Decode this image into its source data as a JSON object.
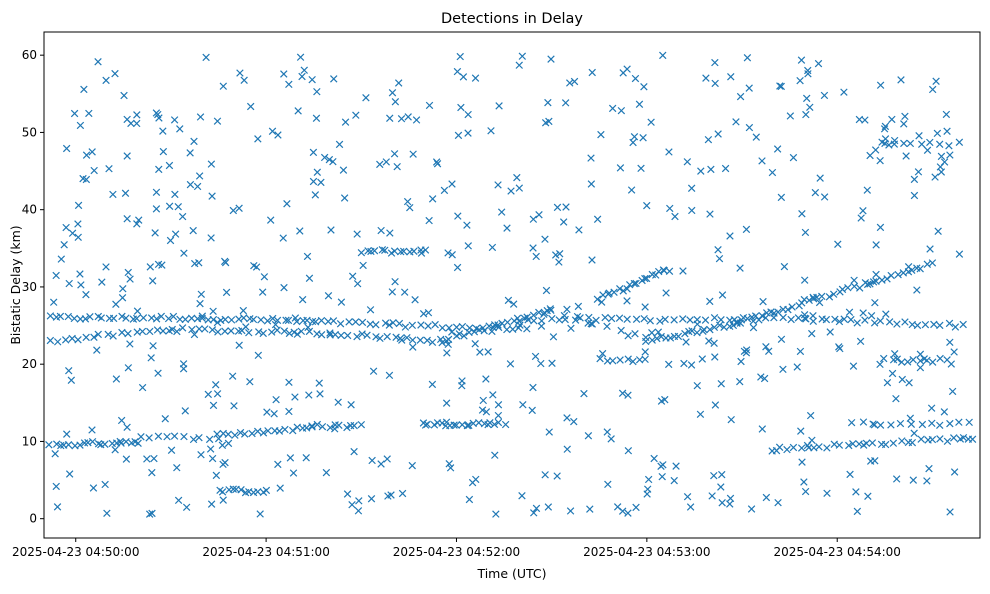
{
  "chart_data": {
    "type": "scatter",
    "title": "Detections in Delay",
    "xlabel": "Time (UTC)",
    "ylabel": "Bistatic Delay (km)",
    "marker": "x",
    "color": "#1f77b4",
    "grid": false,
    "legend": "none",
    "xlim": [
      "2025-04-23 04:49:50",
      "2025-04-23 04:54:45"
    ],
    "ylim": [
      -2.5,
      63
    ],
    "x_ticks": [
      "2025-04-23 04:50:00",
      "2025-04-23 04:51:00",
      "2025-04-23 04:52:00",
      "2025-04-23 04:53:00",
      "2025-04-23 04:54:00"
    ],
    "y_ticks": [
      0,
      10,
      20,
      30,
      40,
      50,
      60
    ],
    "x_range_seconds": [
      0,
      295
    ],
    "tracks": [
      {
        "x": [
          "2025-04-23 04:49:50",
          "2025-04-23 04:50:40"
        ],
        "y": [
          26.0,
          26.0
        ],
        "count": 28
      },
      {
        "x": [
          "2025-04-23 04:50:40",
          "2025-04-23 04:51:15"
        ],
        "y": [
          26.0,
          25.5
        ],
        "count": 20
      },
      {
        "x": [
          "2025-04-23 04:51:15",
          "2025-04-23 04:52:20"
        ],
        "y": [
          25.5,
          24.5
        ],
        "count": 30
      },
      {
        "x": [
          "2025-04-23 04:52:20",
          "2025-04-23 04:53:50"
        ],
        "y": [
          25.8,
          25.8
        ],
        "count": 38
      },
      {
        "x": [
          "2025-04-23 04:53:50",
          "2025-04-23 04:54:40"
        ],
        "y": [
          25.8,
          25.0
        ],
        "count": 22
      },
      {
        "x": [
          "2025-04-23 04:49:52",
          "2025-04-23 04:50:30"
        ],
        "y": [
          23.0,
          24.5
        ],
        "count": 18
      },
      {
        "x": [
          "2025-04-23 04:50:30",
          "2025-04-23 04:51:20"
        ],
        "y": [
          24.5,
          24.0
        ],
        "count": 25
      },
      {
        "x": [
          "2025-04-23 04:51:20",
          "2025-04-23 04:51:55"
        ],
        "y": [
          24.0,
          23.0
        ],
        "count": 18
      },
      {
        "x": [
          "2025-04-23 04:51:55",
          "2025-04-23 04:52:30"
        ],
        "y": [
          23.0,
          27.0
        ],
        "count": 24
      },
      {
        "x": [
          "2025-04-23 04:52:30",
          "2025-04-23 04:53:00"
        ],
        "y": [
          27.0,
          23.5
        ],
        "count": 8
      },
      {
        "x": [
          "2025-04-23 04:53:00",
          "2025-04-23 04:53:30"
        ],
        "y": [
          23.0,
          25.5
        ],
        "count": 22
      },
      {
        "x": [
          "2025-04-23 04:53:30",
          "2025-04-23 04:54:10"
        ],
        "y": [
          25.5,
          30.5
        ],
        "count": 26
      },
      {
        "x": [
          "2025-04-23 04:54:10",
          "2025-04-23 04:54:30"
        ],
        "y": [
          30.5,
          33.0
        ],
        "count": 12
      },
      {
        "x": [
          "2025-04-23 04:52:45",
          "2025-04-23 04:53:05"
        ],
        "y": [
          28.5,
          32.0
        ],
        "count": 18
      },
      {
        "x": [
          "2025-04-23 04:51:30",
          "2025-04-23 04:51:50"
        ],
        "y": [
          34.6,
          34.6
        ],
        "count": 14
      },
      {
        "x": [
          "2025-04-23 04:49:52",
          "2025-04-23 04:50:20"
        ],
        "y": [
          9.5,
          10.0
        ],
        "count": 20
      },
      {
        "x": [
          "2025-04-23 04:50:20",
          "2025-04-23 04:50:45"
        ],
        "y": [
          10.5,
          10.5
        ],
        "count": 10
      },
      {
        "x": [
          "2025-04-23 04:50:45",
          "2025-04-23 04:51:15"
        ],
        "y": [
          10.8,
          11.8
        ],
        "count": 18
      },
      {
        "x": [
          "2025-04-23 04:51:15",
          "2025-04-23 04:51:30"
        ],
        "y": [
          12.0,
          12.0
        ],
        "count": 10
      },
      {
        "x": [
          "2025-04-23 04:51:50",
          "2025-04-23 04:52:15"
        ],
        "y": [
          12.3,
          12.3
        ],
        "count": 20
      },
      {
        "x": [
          "2025-04-23 04:53:40",
          "2025-04-23 04:54:45"
        ],
        "y": [
          9.0,
          10.5
        ],
        "count": 32
      },
      {
        "x": [
          "2025-04-23 04:54:05",
          "2025-04-23 04:54:45"
        ],
        "y": [
          12.3,
          12.3
        ],
        "count": 14
      },
      {
        "x": [
          "2025-04-23 04:50:45",
          "2025-04-23 04:51:00"
        ],
        "y": [
          3.6,
          3.6
        ],
        "count": 12
      },
      {
        "x": [
          "2025-04-23 04:52:45",
          "2025-04-23 04:53:00"
        ],
        "y": [
          20.5,
          20.5
        ],
        "count": 8
      },
      {
        "x": [
          "2025-04-23 04:54:15",
          "2025-04-23 04:54:35"
        ],
        "y": [
          20.5,
          20.5
        ],
        "count": 10
      },
      {
        "x": [
          "2025-04-23 04:54:15",
          "2025-04-23 04:54:35"
        ],
        "y": [
          48.5,
          48.5
        ],
        "count": 8
      }
    ],
    "scatter_points_count": 640,
    "scatter_y_range": [
      0.5,
      60
    ]
  }
}
